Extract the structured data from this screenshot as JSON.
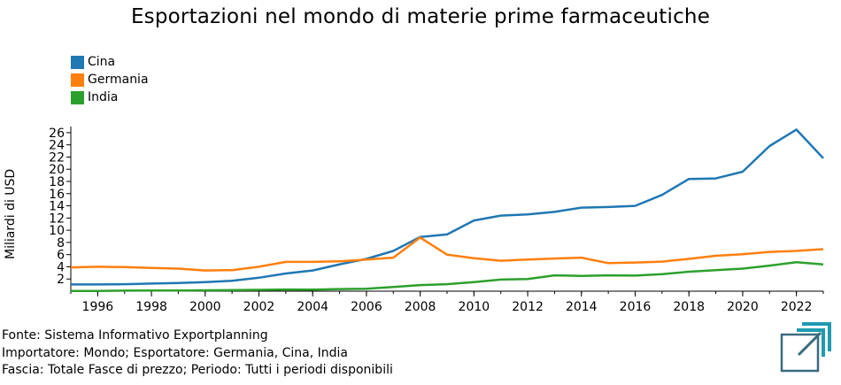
{
  "chart_data": {
    "type": "line",
    "title": "Esportazioni nel mondo di materie prime farmaceutiche",
    "ylabel": "Miliardi di USD",
    "xlabel": "",
    "x": [
      1995,
      1996,
      1997,
      1998,
      1999,
      2000,
      2001,
      2002,
      2003,
      2004,
      2005,
      2006,
      2007,
      2008,
      2009,
      2010,
      2011,
      2012,
      2013,
      2014,
      2015,
      2016,
      2017,
      2018,
      2019,
      2020,
      2021,
      2022,
      2023
    ],
    "xlim": [
      1995,
      2023
    ],
    "ylim": [
      0,
      27
    ],
    "xticks": [
      1996,
      1998,
      2000,
      2002,
      2004,
      2006,
      2008,
      2010,
      2012,
      2014,
      2016,
      2018,
      2020,
      2022
    ],
    "yticks": [
      2,
      4,
      6,
      8,
      10,
      12,
      14,
      16,
      18,
      20,
      22,
      24,
      26
    ],
    "series": [
      {
        "name": "Cina",
        "color": "#1f77b4",
        "values": [
          1.1,
          1.1,
          1.15,
          1.25,
          1.35,
          1.5,
          1.7,
          2.2,
          2.9,
          3.4,
          4.4,
          5.3,
          6.6,
          8.9,
          9.3,
          11.6,
          12.4,
          12.6,
          13.0,
          13.7,
          13.8,
          14.0,
          15.8,
          18.4,
          18.5,
          19.6,
          23.8,
          26.5,
          21.8
        ]
      },
      {
        "name": "Germania",
        "color": "#ff7f0e",
        "values": [
          3.9,
          4.0,
          3.95,
          3.8,
          3.7,
          3.4,
          3.45,
          4.0,
          4.8,
          4.8,
          4.9,
          5.2,
          5.5,
          8.8,
          6.0,
          5.4,
          5.0,
          5.2,
          5.35,
          5.5,
          4.6,
          4.7,
          4.85,
          5.3,
          5.8,
          6.05,
          6.45,
          6.6,
          6.9
        ]
      },
      {
        "name": "India",
        "color": "#2ca02c",
        "values": [
          0.05,
          0.05,
          0.08,
          0.1,
          0.12,
          0.15,
          0.18,
          0.22,
          0.28,
          0.25,
          0.35,
          0.4,
          0.7,
          1.0,
          1.15,
          1.5,
          1.9,
          2.0,
          2.6,
          2.5,
          2.6,
          2.55,
          2.8,
          3.2,
          3.45,
          3.7,
          4.2,
          4.75,
          4.4
        ]
      }
    ],
    "legend_position": "top-left",
    "grid": false
  },
  "footer": {
    "line1": "Fonte: Sistema Informativo Exportplanning",
    "line2": "Importatore: Mondo; Esportatore: Germania, Cina, India",
    "line3": "Fascia: Totale Fasce di prezzo; Periodo: Tutti i periodi disponibili"
  },
  "logo": {
    "icon": "exportplanning-logo-icon",
    "colors": [
      "#3a6b7e",
      "#1f9bb0"
    ]
  }
}
